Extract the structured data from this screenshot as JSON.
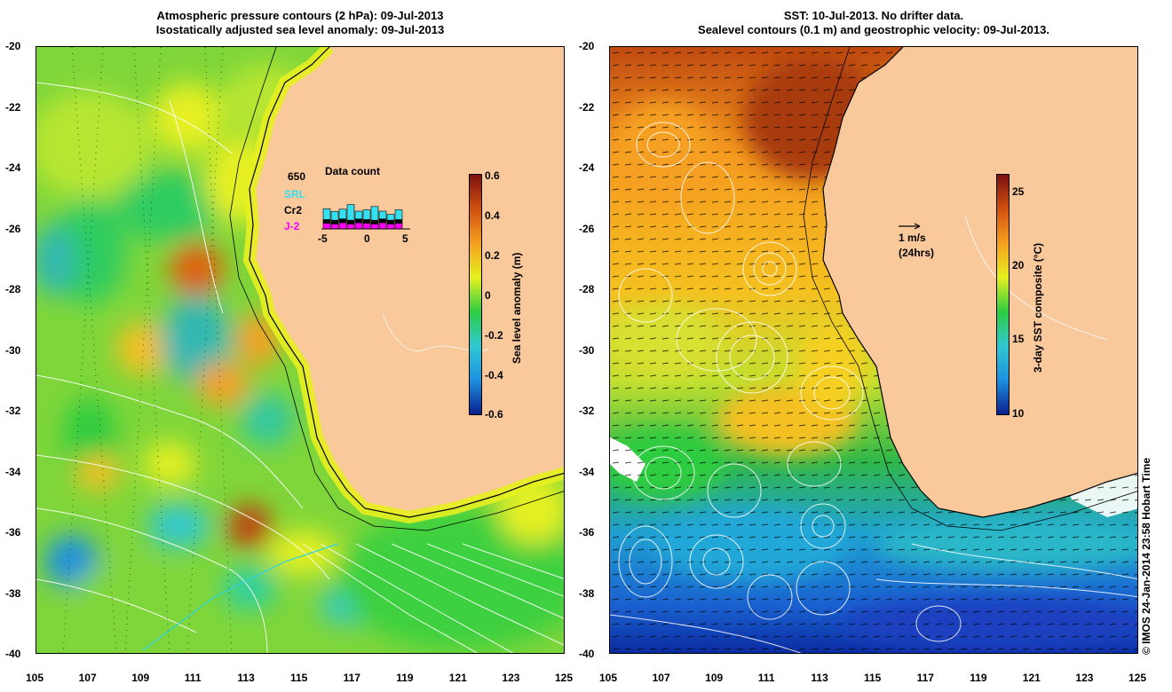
{
  "left_panel": {
    "title_line1": "Atmospheric pressure contours (2 hPa): 09-Jul-2013",
    "title_line2": "Isostatically adjusted sea level anomaly: 09-Jul-2013",
    "colorbar": {
      "label": "Sea level anomaly (m)",
      "ticks": [
        "0.6",
        "0.4",
        "0.2",
        "0",
        "-0.2",
        "-0.4",
        "-0.6"
      ]
    },
    "data_count": {
      "title": "Data count",
      "max_label": "650",
      "satellites": [
        {
          "name": "SRL",
          "color": "#35e0f0"
        },
        {
          "name": "Cr2",
          "color": "#000000"
        },
        {
          "name": "J-2",
          "color": "#ff00ff"
        }
      ],
      "x_ticks": [
        "-5",
        "0",
        "5"
      ],
      "days": [
        -5,
        -4,
        -3,
        -2,
        -1,
        0,
        1,
        2,
        3,
        4
      ],
      "srl": [
        0.55,
        0.45,
        0.5,
        0.8,
        0.4,
        0.5,
        0.7,
        0.4,
        0.3,
        0.5
      ],
      "cr2": [
        0.3,
        0.3,
        0.3,
        0.3,
        0.3,
        0.3,
        0.3,
        0.3,
        0.3,
        0.3
      ],
      "j2": [
        0.45,
        0.4,
        0.5,
        0.4,
        0.5,
        0.45,
        0.4,
        0.5,
        0.4,
        0.45
      ]
    }
  },
  "right_panel": {
    "title_line1": "SST: 10-Jul-2013. No drifter data.",
    "title_line2": "Sealevel contours (0.1 m) and geostrophic velocity: 09-Jul-2013.",
    "colorbar": {
      "label": "3-day SST composite (°C)",
      "ticks": [
        "25",
        "20",
        "15",
        "10"
      ]
    },
    "scale_arrow": {
      "line1": "1 m/s",
      "line2": "(24hrs)"
    }
  },
  "axes": {
    "lat_ticks": [
      "-20",
      "-22",
      "-24",
      "-26",
      "-28",
      "-30",
      "-32",
      "-34",
      "-36",
      "-38",
      "-40"
    ],
    "lon_ticks": [
      "105",
      "107",
      "109",
      "111",
      "113",
      "115",
      "117",
      "119",
      "121",
      "123",
      "125"
    ]
  },
  "credit": "© IMOS 24-Jan-2014 23:58 Hobart Time",
  "colors": {
    "land": "#f9c89b",
    "ssl_colormap": [
      "#0a1f8f",
      "#1e90e0",
      "#30c8d0",
      "#2ecc40",
      "#e6f020",
      "#f5a020",
      "#d05010",
      "#7a1010"
    ],
    "sst_colormap": [
      "#0a1f8f",
      "#1e90e0",
      "#30c8d0",
      "#2ecc40",
      "#e6f020",
      "#f5a020",
      "#d05010",
      "#7a1010"
    ]
  }
}
